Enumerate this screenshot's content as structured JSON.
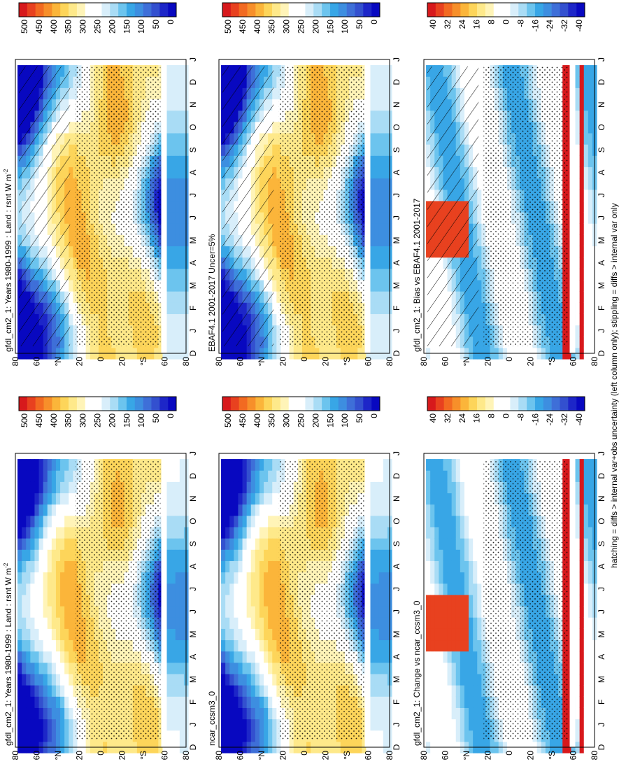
{
  "figure": {
    "caption": "hatching = diffs > internal var+obs uncertainty (left column only); stippling = diffs > internal var only"
  },
  "colorbars": {
    "absolute": {
      "labels": [
        "500",
        "450",
        "400",
        "350",
        "300",
        "250",
        "200",
        "150",
        "100",
        "50",
        "0"
      ],
      "colors": [
        "#d7191c",
        "#e8411f",
        "#f26a21",
        "#f78f2a",
        "#fbb53a",
        "#fdd55a",
        "#fee98a",
        "#fff4b8",
        "#ffffff",
        "#ffffff",
        "#d8eefa",
        "#a9dcf5",
        "#6cc4ee",
        "#38a6e6",
        "#3d8ee0",
        "#3e6fd8",
        "#3350cf",
        "#1d26c8",
        "#0808c0"
      ]
    },
    "difference": {
      "labels": [
        "40",
        "32",
        "24",
        "16",
        "8",
        "0",
        "-8",
        "-16",
        "-24",
        "-32",
        "-40"
      ],
      "colors": [
        "#d7191c",
        "#e8411f",
        "#f26a21",
        "#f78f2a",
        "#fbb53a",
        "#fdd55a",
        "#fee98a",
        "#fff4b8",
        "#ffffff",
        "#ffffff",
        "#d8eefa",
        "#a9dcf5",
        "#6cc4ee",
        "#38a6e6",
        "#3d8ee0",
        "#3e6fd8",
        "#3350cf",
        "#1d26c8",
        "#0808c0"
      ]
    }
  },
  "axes": {
    "months": [
      "D",
      "J",
      "F",
      "M",
      "A",
      "M",
      "J",
      "J",
      "A",
      "S",
      "O",
      "N",
      "D",
      "J"
    ],
    "latitudes": [
      "80",
      "60",
      "°N",
      "20",
      "0",
      "20",
      "°S",
      "60",
      "80"
    ]
  },
  "chart_data": [
    {
      "type": "heatmap",
      "title": "gfdl_cm2_1: Years 1980-1999 : Land : rsnt W m",
      "title_superscript": "-2",
      "x": "month (D..J)",
      "y": "latitude (80N..80S)",
      "zlim": [
        0,
        500
      ],
      "colorbar": "absolute",
      "hatching": true,
      "stippling": true
    },
    {
      "type": "heatmap",
      "title": "gfdl_cm2_1: Years 1980-1999 : Land : rsnt W m",
      "title_superscript": "-2",
      "x": "month (D..J)",
      "y": "latitude (80N..80S)",
      "zlim": [
        0,
        500
      ],
      "colorbar": "absolute",
      "hatching": false,
      "stippling": true
    },
    {
      "type": "heatmap",
      "title": "EBAF4.1 2001-2017 Uncer=5%",
      "x": "month (D..J)",
      "y": "latitude (80N..80S)",
      "zlim": [
        0,
        500
      ],
      "colorbar": "absolute",
      "hatching": true,
      "stippling": true
    },
    {
      "type": "heatmap",
      "title": "ncar_ccsm3_0",
      "x": "month (D..J)",
      "y": "latitude (80N..80S)",
      "zlim": [
        0,
        500
      ],
      "colorbar": "absolute",
      "hatching": false,
      "stippling": true
    },
    {
      "type": "heatmap",
      "title": "gfdl_cm2_1: Bias vs EBAF4.1 2001-2017",
      "x": "month (D..J)",
      "y": "latitude (80N..80S)",
      "zlim": [
        -40,
        40
      ],
      "colorbar": "difference",
      "hatching": true,
      "stippling": true
    },
    {
      "type": "heatmap",
      "title": "gfdl_cm2_1: Change vs ncar_ccsm3_0",
      "x": "month (D..J)",
      "y": "latitude (80N..80S)",
      "zlim": [
        -40,
        40
      ],
      "colorbar": "difference",
      "hatching": false,
      "stippling": true
    }
  ]
}
